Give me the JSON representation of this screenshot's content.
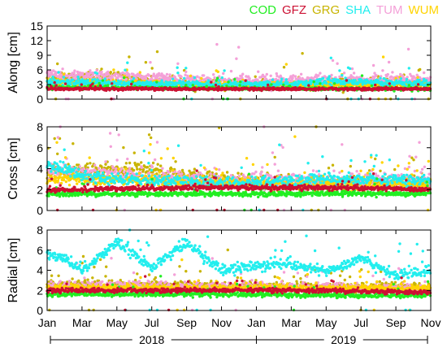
{
  "legend": [
    {
      "name": "COD",
      "color": "#22ee22"
    },
    {
      "name": "GFZ",
      "color": "#cc1133"
    },
    {
      "name": "GRG",
      "color": "#c8b400"
    },
    {
      "name": "SHA",
      "color": "#22eeee"
    },
    {
      "name": "TUM",
      "color": "#f4a0d8"
    },
    {
      "name": "WUM",
      "color": "#ffd400"
    }
  ],
  "chart_data": [
    {
      "type": "scatter",
      "ylabel": "Along [cm]",
      "ylim": [
        0,
        15
      ],
      "yticks": [
        0,
        3,
        6,
        9,
        12,
        15
      ],
      "grid": false,
      "x_range": [
        "2018-01-01",
        "2019-11-01"
      ],
      "series": [
        {
          "name": "COD",
          "level": [
            [
              0,
              2.4
            ],
            [
              4,
              2.3
            ],
            [
              10,
              2.2
            ],
            [
              16,
              2.1
            ],
            [
              22,
              2.1
            ]
          ],
          "spread": 0.3
        },
        {
          "name": "GFZ",
          "level": [
            [
              0,
              2.1
            ],
            [
              4,
              2.1
            ],
            [
              10,
              2.1
            ],
            [
              16,
              2.1
            ],
            [
              22,
              2.1
            ]
          ],
          "spread": 0.25
        },
        {
          "name": "GRG",
          "level": [
            [
              0,
              4.5
            ],
            [
              3,
              4.2
            ],
            [
              4,
              4.8
            ],
            [
              6,
              3.6
            ],
            [
              10,
              3.0
            ],
            [
              14,
              3.0
            ],
            [
              16,
              3.4
            ],
            [
              22,
              3.2
            ]
          ],
          "spread": 0.9
        },
        {
          "name": "SHA",
          "level": [
            [
              0,
              3.5
            ],
            [
              4,
              3.2
            ],
            [
              10,
              3.0
            ],
            [
              14,
              3.2
            ],
            [
              16,
              3.6
            ],
            [
              22,
              3.3
            ]
          ],
          "spread": 0.6
        },
        {
          "name": "TUM",
          "level": [
            [
              0,
              5.0
            ],
            [
              4,
              4.5
            ],
            [
              10,
              3.8
            ],
            [
              16,
              3.8
            ],
            [
              22,
              4.2
            ]
          ],
          "spread": 1.0
        },
        {
          "name": "WUM",
          "level": [
            [
              0,
              3.5
            ],
            [
              4,
              3.2
            ],
            [
              10,
              2.9
            ],
            [
              16,
              3.0
            ],
            [
              22,
              3.0
            ]
          ],
          "spread": 0.6
        }
      ]
    },
    {
      "type": "scatter",
      "ylabel": "Cross [cm]",
      "ylim": [
        0,
        8
      ],
      "yticks": [
        0,
        2,
        4,
        6,
        8
      ],
      "grid": false,
      "x_range": [
        "2018-01-01",
        "2019-11-01"
      ],
      "series": [
        {
          "name": "COD",
          "level": [
            [
              0,
              1.6
            ],
            [
              10,
              1.6
            ],
            [
              16,
              1.6
            ],
            [
              22,
              1.6
            ]
          ],
          "spread": 0.2
        },
        {
          "name": "GFZ",
          "level": [
            [
              0,
              1.9
            ],
            [
              4,
              2.1
            ],
            [
              10,
              2.2
            ],
            [
              16,
              2.2
            ],
            [
              22,
              2.0
            ]
          ],
          "spread": 0.2
        },
        {
          "name": "GRG",
          "level": [
            [
              0,
              3.5
            ],
            [
              3,
              3.8
            ],
            [
              5,
              4.0
            ],
            [
              10,
              3.0
            ],
            [
              14,
              2.6
            ],
            [
              22,
              2.5
            ]
          ],
          "spread": 0.7
        },
        {
          "name": "SHA",
          "level": [
            [
              0,
              4.5
            ],
            [
              2,
              3.2
            ],
            [
              10,
              2.6
            ],
            [
              16,
              3.0
            ],
            [
              22,
              2.8
            ]
          ],
          "spread": 0.5
        },
        {
          "name": "TUM",
          "level": [
            [
              0,
              3.8
            ],
            [
              4,
              3.4
            ],
            [
              10,
              2.9
            ],
            [
              16,
              2.8
            ],
            [
              22,
              3.0
            ]
          ],
          "spread": 0.7
        },
        {
          "name": "WUM",
          "level": [
            [
              0,
              3.0
            ],
            [
              4,
              2.9
            ],
            [
              10,
              2.6
            ],
            [
              16,
              2.5
            ],
            [
              22,
              2.5
            ]
          ],
          "spread": 0.5
        }
      ]
    },
    {
      "type": "scatter",
      "ylabel": "Radial [cm]",
      "ylim": [
        0,
        8
      ],
      "yticks": [
        0,
        2,
        4,
        6,
        8
      ],
      "grid": false,
      "x_range": [
        "2018-01-01",
        "2019-11-01"
      ],
      "series": [
        {
          "name": "COD",
          "level": [
            [
              0,
              1.6
            ],
            [
              10,
              1.6
            ],
            [
              16,
              1.5
            ],
            [
              22,
              1.5
            ]
          ],
          "spread": 0.2
        },
        {
          "name": "GFZ",
          "level": [
            [
              0,
              2.0
            ],
            [
              10,
              2.0
            ],
            [
              16,
              2.0
            ],
            [
              22,
              1.8
            ]
          ],
          "spread": 0.2
        },
        {
          "name": "GRG",
          "level": [
            [
              0,
              2.6
            ],
            [
              5,
              2.5
            ],
            [
              10,
              2.4
            ],
            [
              16,
              2.3
            ],
            [
              22,
              2.3
            ]
          ],
          "spread": 0.4
        },
        {
          "name": "SHA",
          "level": [
            [
              0,
              5.7
            ],
            [
              1,
              5.2
            ],
            [
              2,
              4.0
            ],
            [
              4,
              6.8
            ],
            [
              6,
              4.2
            ],
            [
              8,
              6.8
            ],
            [
              10,
              4.0
            ],
            [
              12,
              4.5
            ],
            [
              14,
              4.6
            ],
            [
              16,
              3.8
            ],
            [
              18,
              5.2
            ],
            [
              20,
              3.4
            ],
            [
              22,
              4.0
            ]
          ],
          "spread": 0.45
        },
        {
          "name": "TUM",
          "level": [
            [
              0,
              2.5
            ],
            [
              10,
              2.4
            ],
            [
              16,
              2.3
            ],
            [
              22,
              2.2
            ]
          ],
          "spread": 0.4
        },
        {
          "name": "WUM",
          "level": [
            [
              0,
              2.3
            ],
            [
              10,
              2.2
            ],
            [
              16,
              2.2
            ],
            [
              22,
              2.2
            ]
          ],
          "spread": 0.3
        }
      ]
    }
  ],
  "x_axis": {
    "tick_labels": [
      "Jan",
      "Mar",
      "May",
      "Jul",
      "Sep",
      "Nov",
      "Jan",
      "Mar",
      "May",
      "Jul",
      "Sep",
      "Nov"
    ],
    "year_labels": [
      "2018",
      "2019"
    ]
  }
}
